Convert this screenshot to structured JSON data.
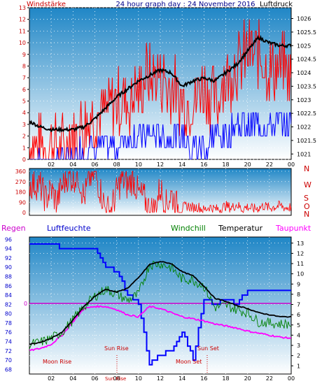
{
  "page": {
    "title": "24 hour graph day : 24 November 2016",
    "background_color": "#ffffff",
    "panel_gradient": [
      "#1f86c6",
      "#ffffff"
    ]
  },
  "chart_data": [
    {
      "type": "line",
      "title": "24 hour graph day : 24 November 2016",
      "left_axis_label": "Windstärke",
      "right_axis_label": "Luftdruck",
      "left_axis_color": "#cc0000",
      "x_ticks": [
        "02",
        "04",
        "06",
        "08",
        "10",
        "12",
        "14",
        "16",
        "18",
        "20",
        "22",
        "00"
      ],
      "left_ticks": [
        0,
        1,
        2,
        3,
        4,
        5,
        6,
        7,
        8,
        9,
        10,
        11,
        12,
        13
      ],
      "left_ylim": [
        0,
        13
      ],
      "right_ticks": [
        1021,
        1021.5,
        1022,
        1022.5,
        1023,
        1023.5,
        1024,
        1024.5,
        1025,
        1025.5,
        1026
      ],
      "right_ylim": [
        1020.8,
        1026.4
      ],
      "hours": [
        0,
        1,
        2,
        3,
        4,
        5,
        6,
        7,
        8,
        9,
        10,
        11,
        12,
        13,
        14,
        15,
        16,
        17,
        18,
        19,
        20,
        21,
        22,
        23,
        24
      ],
      "series": [
        {
          "name": "Luftdruck",
          "color": "#000000",
          "values": [
            1022.2,
            1022.0,
            1021.9,
            1021.9,
            1021.9,
            1022.0,
            1022.3,
            1022.7,
            1023.1,
            1023.4,
            1023.7,
            1023.9,
            1024.1,
            1024.0,
            1023.5,
            1023.7,
            1023.8,
            1023.7,
            1024.0,
            1024.3,
            1024.8,
            1025.3,
            1025.1,
            1025.0,
            1025.0
          ]
        },
        {
          "name": "Windstärke",
          "color": "#ff0000",
          "values": [
            1,
            1,
            1,
            1,
            2,
            3,
            4,
            4,
            5,
            5,
            6,
            7,
            7,
            6,
            5,
            5,
            6,
            5,
            7,
            8,
            9,
            9,
            8,
            8,
            7
          ]
        },
        {
          "name": "Windstärke Minimum",
          "color": "#0000ff",
          "values": [
            0,
            0,
            0,
            0,
            0,
            1,
            1,
            1,
            1,
            2,
            2,
            2,
            2,
            2,
            2,
            1,
            1,
            2,
            2,
            3,
            3,
            3,
            3,
            3,
            3
          ]
        }
      ]
    },
    {
      "type": "scatter",
      "left_ticks": [
        0,
        90,
        180,
        270,
        360
      ],
      "ylim": [
        0,
        360
      ],
      "right_labels": [
        "N",
        "W",
        "S",
        "O",
        "N"
      ],
      "series": [
        {
          "name": "Windrichtung",
          "color": "#ff0000",
          "x": [
            0,
            0.5,
            1,
            1.5,
            2,
            2.5,
            3,
            3.5,
            4,
            4.5,
            5,
            5.5,
            6,
            6.5,
            7,
            7.5,
            8,
            8.5,
            9,
            9.5,
            10,
            10.5,
            11,
            11.5,
            12,
            12.5,
            13,
            13.5,
            14,
            14.5,
            15,
            15.5,
            16,
            16.5,
            17,
            17.5,
            18,
            18.5,
            19,
            19.5,
            20,
            20.5,
            21,
            21.5,
            22,
            22.5,
            23,
            23.5,
            24
          ],
          "y": [
            240,
            250,
            230,
            120,
            200,
            90,
            230,
            320,
            300,
            330,
            120,
            300,
            340,
            200,
            20,
            30,
            180,
            300,
            230,
            300,
            160,
            130,
            20,
            30,
            220,
            60,
            160,
            60,
            40,
            60,
            40,
            50,
            20,
            50,
            30,
            30,
            60,
            40,
            70,
            30,
            50,
            30,
            40,
            60,
            40,
            50,
            60,
            40,
            50
          ]
        }
      ]
    },
    {
      "type": "line",
      "legend": [
        "Regen",
        "Luftfeuchte",
        "Windchill",
        "Temperatur",
        "Taupunkt"
      ],
      "left_axis_label": "Regen",
      "left_ticks": [
        68,
        70,
        72,
        74,
        76,
        78,
        80,
        82,
        84,
        86,
        88,
        90,
        92,
        94,
        96
      ],
      "left_ylim": [
        67,
        96.5
      ],
      "right_ticks": [
        1,
        2,
        3,
        4,
        5,
        6,
        7,
        8,
        9,
        10,
        11,
        12,
        13
      ],
      "right_ylim": [
        0.2,
        13.6
      ],
      "rain_value": "0",
      "x_ticks": [
        "02",
        "04",
        "06",
        "08",
        "10",
        "12",
        "14",
        "16",
        "18",
        "20",
        "22",
        "00"
      ],
      "sun_moon_labels": [
        "Moon Rise",
        "Sun Rise",
        "Sun Rise",
        "Moon Set",
        "Sun Set"
      ],
      "hours": [
        0,
        1,
        2,
        3,
        4,
        5,
        6,
        7,
        8,
        9,
        10,
        11,
        12,
        13,
        14,
        15,
        16,
        17,
        18,
        19,
        20,
        21,
        22,
        23,
        24
      ],
      "series": [
        {
          "name": "Luftfeuchte",
          "color": "#0000ff",
          "values": [
            95,
            95,
            95,
            94,
            94,
            94,
            94,
            90,
            89,
            84,
            82,
            69,
            71,
            72,
            76,
            70,
            83,
            82,
            83,
            82,
            85,
            85,
            85,
            85,
            85
          ]
        },
        {
          "name": "Temperatur",
          "color": "#000000",
          "values": [
            3.1,
            3.3,
            3.7,
            4.3,
            5.5,
            6.8,
            7.8,
            8.5,
            8.2,
            8.6,
            9.6,
            10.9,
            11.2,
            11.0,
            10.2,
            9.8,
            8.8,
            7.6,
            7.3,
            6.9,
            6.6,
            6.2,
            6.0,
            5.8,
            5.8
          ]
        },
        {
          "name": "Windchill",
          "color": "#008000",
          "values": [
            3.1,
            3.3,
            3.7,
            4.3,
            5.5,
            6.8,
            7.8,
            8.5,
            8.0,
            7.4,
            8.0,
            10.9,
            11.0,
            10.6,
            9.5,
            9.4,
            8.8,
            6.7,
            6.9,
            6.5,
            6.2,
            5.3,
            5.2,
            5.1,
            5.1
          ]
        },
        {
          "name": "Taupunkt",
          "color": "#ff00ff",
          "values": [
            2.5,
            2.7,
            3.1,
            4.0,
            5.3,
            6.6,
            6.8,
            6.8,
            6.5,
            6.0,
            5.8,
            6.8,
            6.6,
            6.2,
            5.8,
            5.6,
            5.4,
            5.1,
            4.9,
            4.7,
            4.4,
            4.2,
            4.0,
            3.8,
            3.7
          ]
        }
      ]
    }
  ]
}
